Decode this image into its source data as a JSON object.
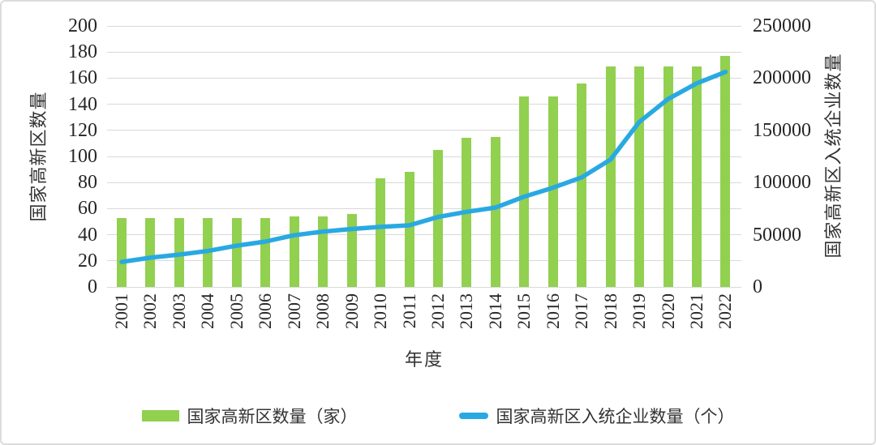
{
  "chart_data": {
    "type": "combo",
    "categories": [
      "2001",
      "2002",
      "2003",
      "2004",
      "2005",
      "2006",
      "2007",
      "2008",
      "2009",
      "2010",
      "2011",
      "2012",
      "2013",
      "2014",
      "2015",
      "2016",
      "2017",
      "2018",
      "2019",
      "2020",
      "2021",
      "2022"
    ],
    "series": [
      {
        "name": "国家高新区数量（家）",
        "chart_type": "bar",
        "axis": "left",
        "color": "#92D050",
        "values": [
          53,
          53,
          53,
          53,
          53,
          53,
          54,
          54,
          56,
          83,
          88,
          105,
          114,
          115,
          146,
          146,
          156,
          169,
          169,
          169,
          169,
          177
        ]
      },
      {
        "name": "国家高新区入统企业数量（个）",
        "chart_type": "line",
        "axis": "right",
        "color": "#29A9E1",
        "values": [
          24000,
          28000,
          31000,
          34500,
          39500,
          43500,
          49500,
          53000,
          55500,
          57500,
          59000,
          67000,
          72000,
          76000,
          86500,
          95000,
          105000,
          122000,
          158000,
          180000,
          195000,
          206000
        ]
      }
    ],
    "x_axis": {
      "title": "年度"
    },
    "left_axis": {
      "title": "国家高新区数量",
      "min": 0,
      "max": 200,
      "ticks": [
        0,
        20,
        40,
        60,
        80,
        100,
        120,
        140,
        160,
        180,
        200
      ]
    },
    "right_axis": {
      "title": "国家高新区入统企业数量",
      "min": 0,
      "max": 250000,
      "ticks": [
        0,
        50000,
        100000,
        150000,
        200000,
        250000
      ]
    },
    "grid": true,
    "gridline_color": "#d9d9d9",
    "legend_position": "bottom"
  }
}
